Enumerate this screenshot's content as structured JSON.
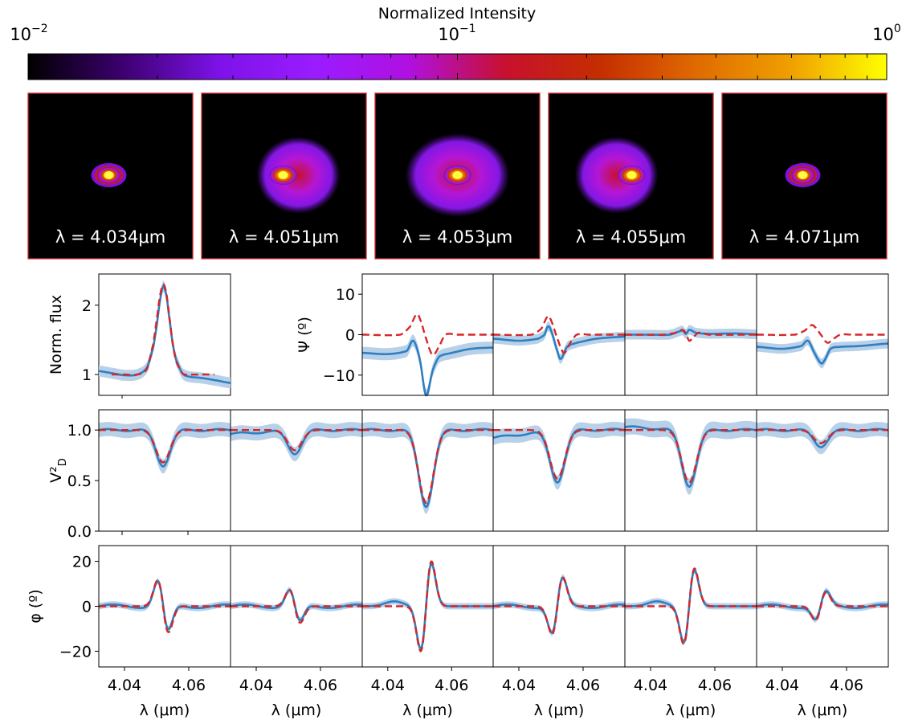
{
  "colorbar": {
    "title": "Normalized Intensity",
    "scale": "log",
    "range": [
      0.01,
      1
    ],
    "tick_labels": [
      {
        "base": "10",
        "exp": "−2",
        "value": 0.01
      },
      {
        "base": "10",
        "exp": "−1",
        "value": 0.1
      },
      {
        "base": "10",
        "exp": "0",
        "value": 1
      }
    ],
    "colormap": "gnuplot2-like",
    "stops": [
      "#000000",
      "#3d0070",
      "#7d12e8",
      "#9a1cff",
      "#b010e0",
      "#c8102e",
      "#c52e00",
      "#e06a00",
      "#f0a000",
      "#ffff00"
    ]
  },
  "images": [
    {
      "label": "λ = 4.034μm",
      "shape": "compact"
    },
    {
      "label": "λ = 4.051μm",
      "shape": "extended-right"
    },
    {
      "label": "λ = 4.053μm",
      "shape": "extended-symmetric"
    },
    {
      "label": "λ = 4.055μm",
      "shape": "extended-left"
    },
    {
      "label": "λ = 4.071μm",
      "shape": "compact"
    }
  ],
  "colors": {
    "observed": "#2f7fc1",
    "observed_band": "#b8d1e8",
    "model": "#d62728",
    "image_border": "#d62728"
  },
  "x_axis": {
    "label": "λ (μm)",
    "xlim": [
      4.032,
      4.073
    ],
    "tick_labels": [
      "4.04",
      "4.06"
    ],
    "ticks": [
      4.04,
      4.06
    ]
  },
  "chart_data": [
    {
      "type": "line",
      "panel": "flux",
      "ylabel": "Norm. flux",
      "ylim": [
        0.7,
        2.45
      ],
      "yticks": [
        1,
        2
      ],
      "ytick_labels": [
        "1",
        "2"
      ],
      "series": [
        {
          "x": [
            4.032,
            4.036,
            4.04,
            4.044,
            4.047,
            4.049,
            4.05,
            4.051,
            4.052,
            4.053,
            4.054,
            4.055,
            4.056,
            4.058,
            4.06,
            4.064,
            4.068,
            4.073
          ],
          "y": [
            1.05,
            1.02,
            0.99,
            1.0,
            1.1,
            1.4,
            1.7,
            2.05,
            2.27,
            2.15,
            1.8,
            1.45,
            1.22,
            1.02,
            0.97,
            0.95,
            0.92,
            0.88
          ],
          "err": 0.08
        },
        {
          "x": [
            4.036,
            4.04,
            4.044,
            4.047,
            4.049,
            4.05,
            4.051,
            4.052,
            4.053,
            4.054,
            4.055,
            4.056,
            4.058,
            4.06,
            4.064,
            4.068
          ],
          "y": [
            1.0,
            1.0,
            1.0,
            1.08,
            1.45,
            1.78,
            2.12,
            2.3,
            2.18,
            1.82,
            1.45,
            1.2,
            1.02,
            1.0,
            1.0,
            1.0
          ]
        }
      ]
    },
    {
      "type": "line",
      "panel": "closure",
      "ylabel": "Ψ (º)",
      "ylim": [
        -15,
        15
      ],
      "yticks": [
        -10,
        0,
        10
      ],
      "ytick_labels": [
        "−10",
        "0",
        "10"
      ],
      "baselines": [
        {
          "obs_x": [
            4.032,
            4.04,
            4.046,
            4.048,
            4.05,
            4.052,
            4.054,
            4.056,
            4.06,
            4.066,
            4.073
          ],
          "obs_y": [
            -4.5,
            -4.8,
            -4.0,
            -1.5,
            -6.0,
            -15.0,
            -9.0,
            -5.5,
            -4.5,
            -3.5,
            -3.2
          ],
          "err": 1.5,
          "mod_x": [
            4.032,
            4.044,
            4.047,
            4.049,
            4.05,
            4.052,
            4.054,
            4.056,
            4.058,
            4.062,
            4.073
          ],
          "mod_y": [
            0,
            0,
            2.0,
            5.0,
            4.0,
            -1.0,
            -5.0,
            -3.0,
            0,
            0,
            0
          ]
        },
        {
          "obs_x": [
            4.032,
            4.04,
            4.046,
            4.048,
            4.049,
            4.05,
            4.052,
            4.053,
            4.055,
            4.058,
            4.064,
            4.073
          ],
          "obs_y": [
            -1.0,
            -1.5,
            -1.0,
            0,
            2.0,
            1.0,
            -4.0,
            -6.0,
            -3.0,
            -2.0,
            -1.0,
            -0.5
          ],
          "err": 1.2,
          "mod_x": [
            4.032,
            4.044,
            4.047,
            4.049,
            4.05,
            4.052,
            4.054,
            4.056,
            4.058,
            4.062,
            4.073
          ],
          "mod_y": [
            0,
            0,
            1.5,
            4.5,
            3.5,
            -1.0,
            -4.5,
            -2.0,
            0,
            0,
            0
          ]
        },
        {
          "obs_x": [
            4.032,
            4.04,
            4.046,
            4.049,
            4.05,
            4.051,
            4.052,
            4.054,
            4.058,
            4.066,
            4.073
          ],
          "obs_y": [
            0,
            0,
            0,
            0.8,
            1.0,
            0.2,
            1.2,
            0.5,
            0.2,
            0.3,
            0.1
          ],
          "err": 1.2,
          "mod_x": [
            4.032,
            4.044,
            4.048,
            4.05,
            4.051,
            4.052,
            4.053,
            4.055,
            4.058,
            4.073
          ],
          "mod_y": [
            0,
            0,
            0.5,
            1.2,
            0.3,
            -1.5,
            -0.8,
            0.5,
            0,
            0
          ]
        },
        {
          "obs_x": [
            4.032,
            4.04,
            4.046,
            4.048,
            4.05,
            4.052,
            4.053,
            4.055,
            4.058,
            4.064,
            4.073
          ],
          "obs_y": [
            -3.0,
            -3.5,
            -2.8,
            -1.5,
            -4.5,
            -7.0,
            -6.5,
            -3.5,
            -3.0,
            -2.8,
            -2.2
          ],
          "err": 1.2,
          "mod_x": [
            4.032,
            4.044,
            4.047,
            4.049,
            4.05,
            4.052,
            4.054,
            4.056,
            4.058,
            4.062,
            4.073
          ],
          "mod_y": [
            0,
            0,
            1.0,
            2.3,
            2.0,
            0,
            -2.0,
            -1.0,
            0,
            0,
            0
          ]
        }
      ]
    },
    {
      "type": "line",
      "panel": "visibility",
      "ylabel": "V²",
      "ylabel_sub": "D",
      "ylim": [
        0,
        1.2
      ],
      "yticks": [
        0,
        0.5,
        1
      ],
      "ytick_labels": [
        "0.0",
        "0.5",
        "1.0"
      ],
      "baselines": [
        {
          "dip": 0.32,
          "center": 4.052,
          "width": 0.0022,
          "obs_off": 0.0,
          "obs_slope": 0.0,
          "err": 0.07
        },
        {
          "dip": 0.2,
          "center": 4.052,
          "width": 0.0022,
          "obs_off": -0.04,
          "obs_slope": 0.0,
          "err": 0.07
        },
        {
          "dip": 0.72,
          "center": 4.052,
          "width": 0.0023,
          "obs_off": 0.0,
          "obs_slope": 0.0,
          "err": 0.07
        },
        {
          "dip": 0.48,
          "center": 4.052,
          "width": 0.0023,
          "obs_off": -0.08,
          "obs_slope": 0.002,
          "err": 0.07
        },
        {
          "dip": 0.52,
          "center": 4.052,
          "width": 0.0023,
          "obs_off": 0.03,
          "obs_slope": 0.0,
          "err": 0.08
        },
        {
          "dip": 0.13,
          "center": 4.052,
          "width": 0.0022,
          "obs_off": 0.0,
          "obs_slope": 0.0,
          "err": 0.07
        }
      ]
    },
    {
      "type": "line",
      "panel": "differential_phase",
      "ylabel": "φ (º)",
      "ylim": [
        -27,
        27
      ],
      "yticks": [
        -20,
        0,
        20
      ],
      "ytick_labels": [
        "−20",
        "0",
        "20"
      ],
      "baselines": [
        {
          "amp": 11,
          "peak_at": 4.0505,
          "sign": 1
        },
        {
          "amp": 7,
          "peak_at": 4.0505,
          "sign": 1
        },
        {
          "amp": 19,
          "peak_at": 4.0545,
          "sign": -1
        },
        {
          "amp": 12,
          "peak_at": 4.0545,
          "sign": -1
        },
        {
          "amp": 16,
          "peak_at": 4.0545,
          "sign": -1
        },
        {
          "amp": 6,
          "peak_at": 4.0545,
          "sign": -1
        }
      ]
    }
  ]
}
